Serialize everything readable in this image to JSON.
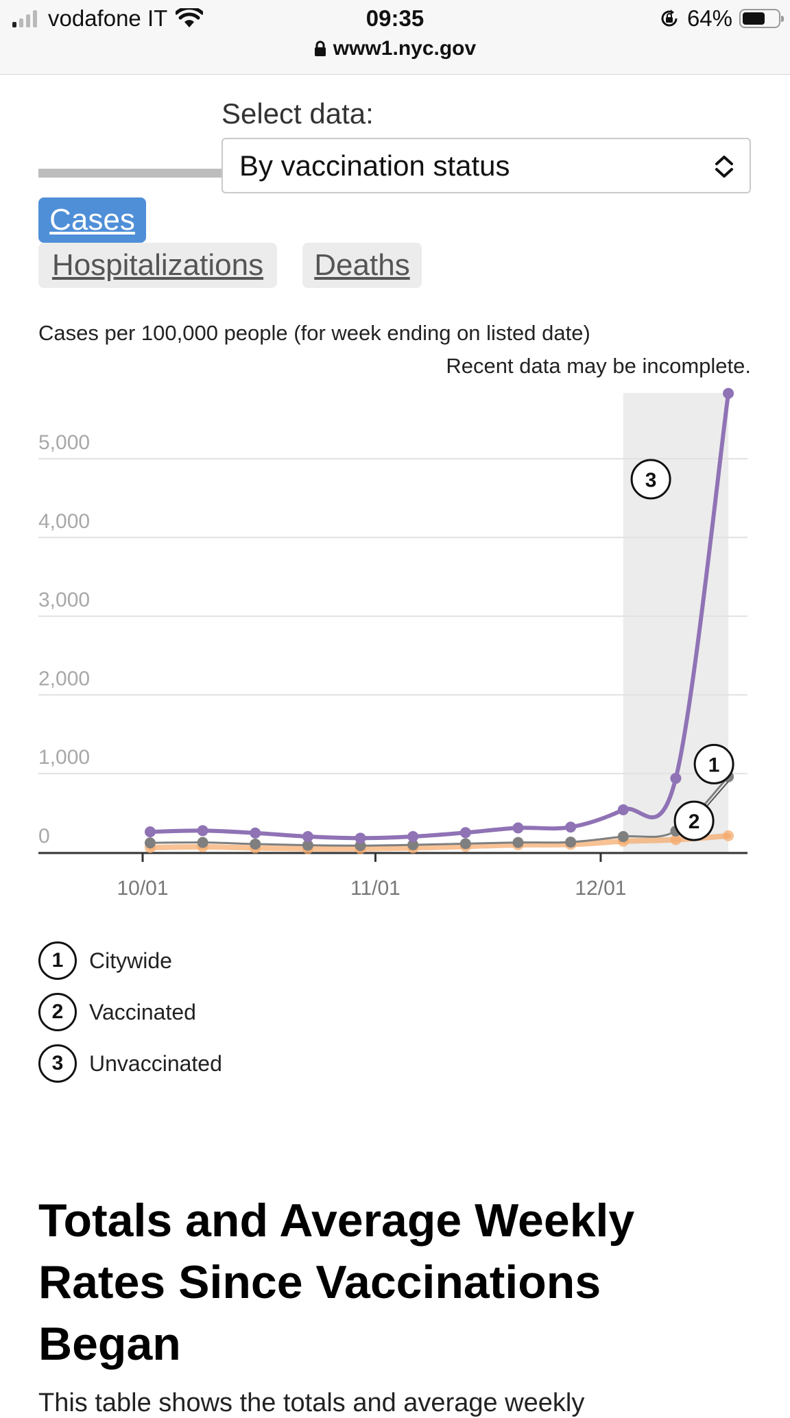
{
  "status_bar": {
    "carrier": "vodafone IT",
    "time": "09:35",
    "battery_percent": "64%",
    "battery_level": 0.64,
    "url": "www1.nyc.gov"
  },
  "selector": {
    "label": "Select data:",
    "value": "By vaccination status"
  },
  "tabs": [
    {
      "label": "Cases",
      "active": true
    },
    {
      "label": "Hospitalizations",
      "active": false
    },
    {
      "label": "Deaths",
      "active": false
    }
  ],
  "chart_header": {
    "title": "Cases per 100,000 people (for week ending on listed date)",
    "note": "Recent data may be incomplete."
  },
  "chart_data": {
    "type": "line",
    "ylim": [
      0,
      5000
    ],
    "y_ticks": [
      "0",
      "1,000",
      "2,000",
      "3,000",
      "4,000",
      "5,000"
    ],
    "x_ticks": [
      "10/01",
      "11/01",
      "12/01"
    ],
    "x_tick_dates": [
      "2021-10-01",
      "2021-11-01",
      "2021-12-01"
    ],
    "grid": true,
    "highlight_start": "2021-12-04",
    "highlight_end": "2021-12-18",
    "x": [
      "2021-10-02",
      "2021-10-09",
      "2021-10-16",
      "2021-10-23",
      "2021-10-30",
      "2021-11-06",
      "2021-11-13",
      "2021-11-20",
      "2021-11-27",
      "2021-12-04",
      "2021-12-11",
      "2021-12-18"
    ],
    "series": [
      {
        "name": "Citywide",
        "color": "#7f7f7f",
        "marker": "1",
        "values": [
          120,
          125,
          105,
          90,
          85,
          95,
          110,
          125,
          130,
          200,
          270,
          960
        ]
      },
      {
        "name": "Vaccinated",
        "color": "#f5a868",
        "marker": "2",
        "values": [
          60,
          70,
          55,
          45,
          45,
          55,
          75,
          95,
          100,
          140,
          160,
          210
        ]
      },
      {
        "name": "Unvaccinated",
        "color": "#8f73b5",
        "marker": "3",
        "values": [
          260,
          275,
          245,
          200,
          180,
          200,
          250,
          310,
          320,
          540,
          940,
          5830
        ]
      }
    ]
  },
  "legend": [
    {
      "num": "1",
      "label": "Citywide"
    },
    {
      "num": "2",
      "label": "Vaccinated"
    },
    {
      "num": "3",
      "label": "Unvaccinated"
    }
  ],
  "section": {
    "heading": "Totals and Average Weekly Rates Since Vaccinations Began",
    "paragraph_start": "This table shows the totals and average weekly"
  },
  "colors": {
    "accent": "#4f8fd8",
    "unvaccinated": "#8f73b5",
    "citywide": "#7f7f7f",
    "vaccinated": "#f5a868"
  }
}
